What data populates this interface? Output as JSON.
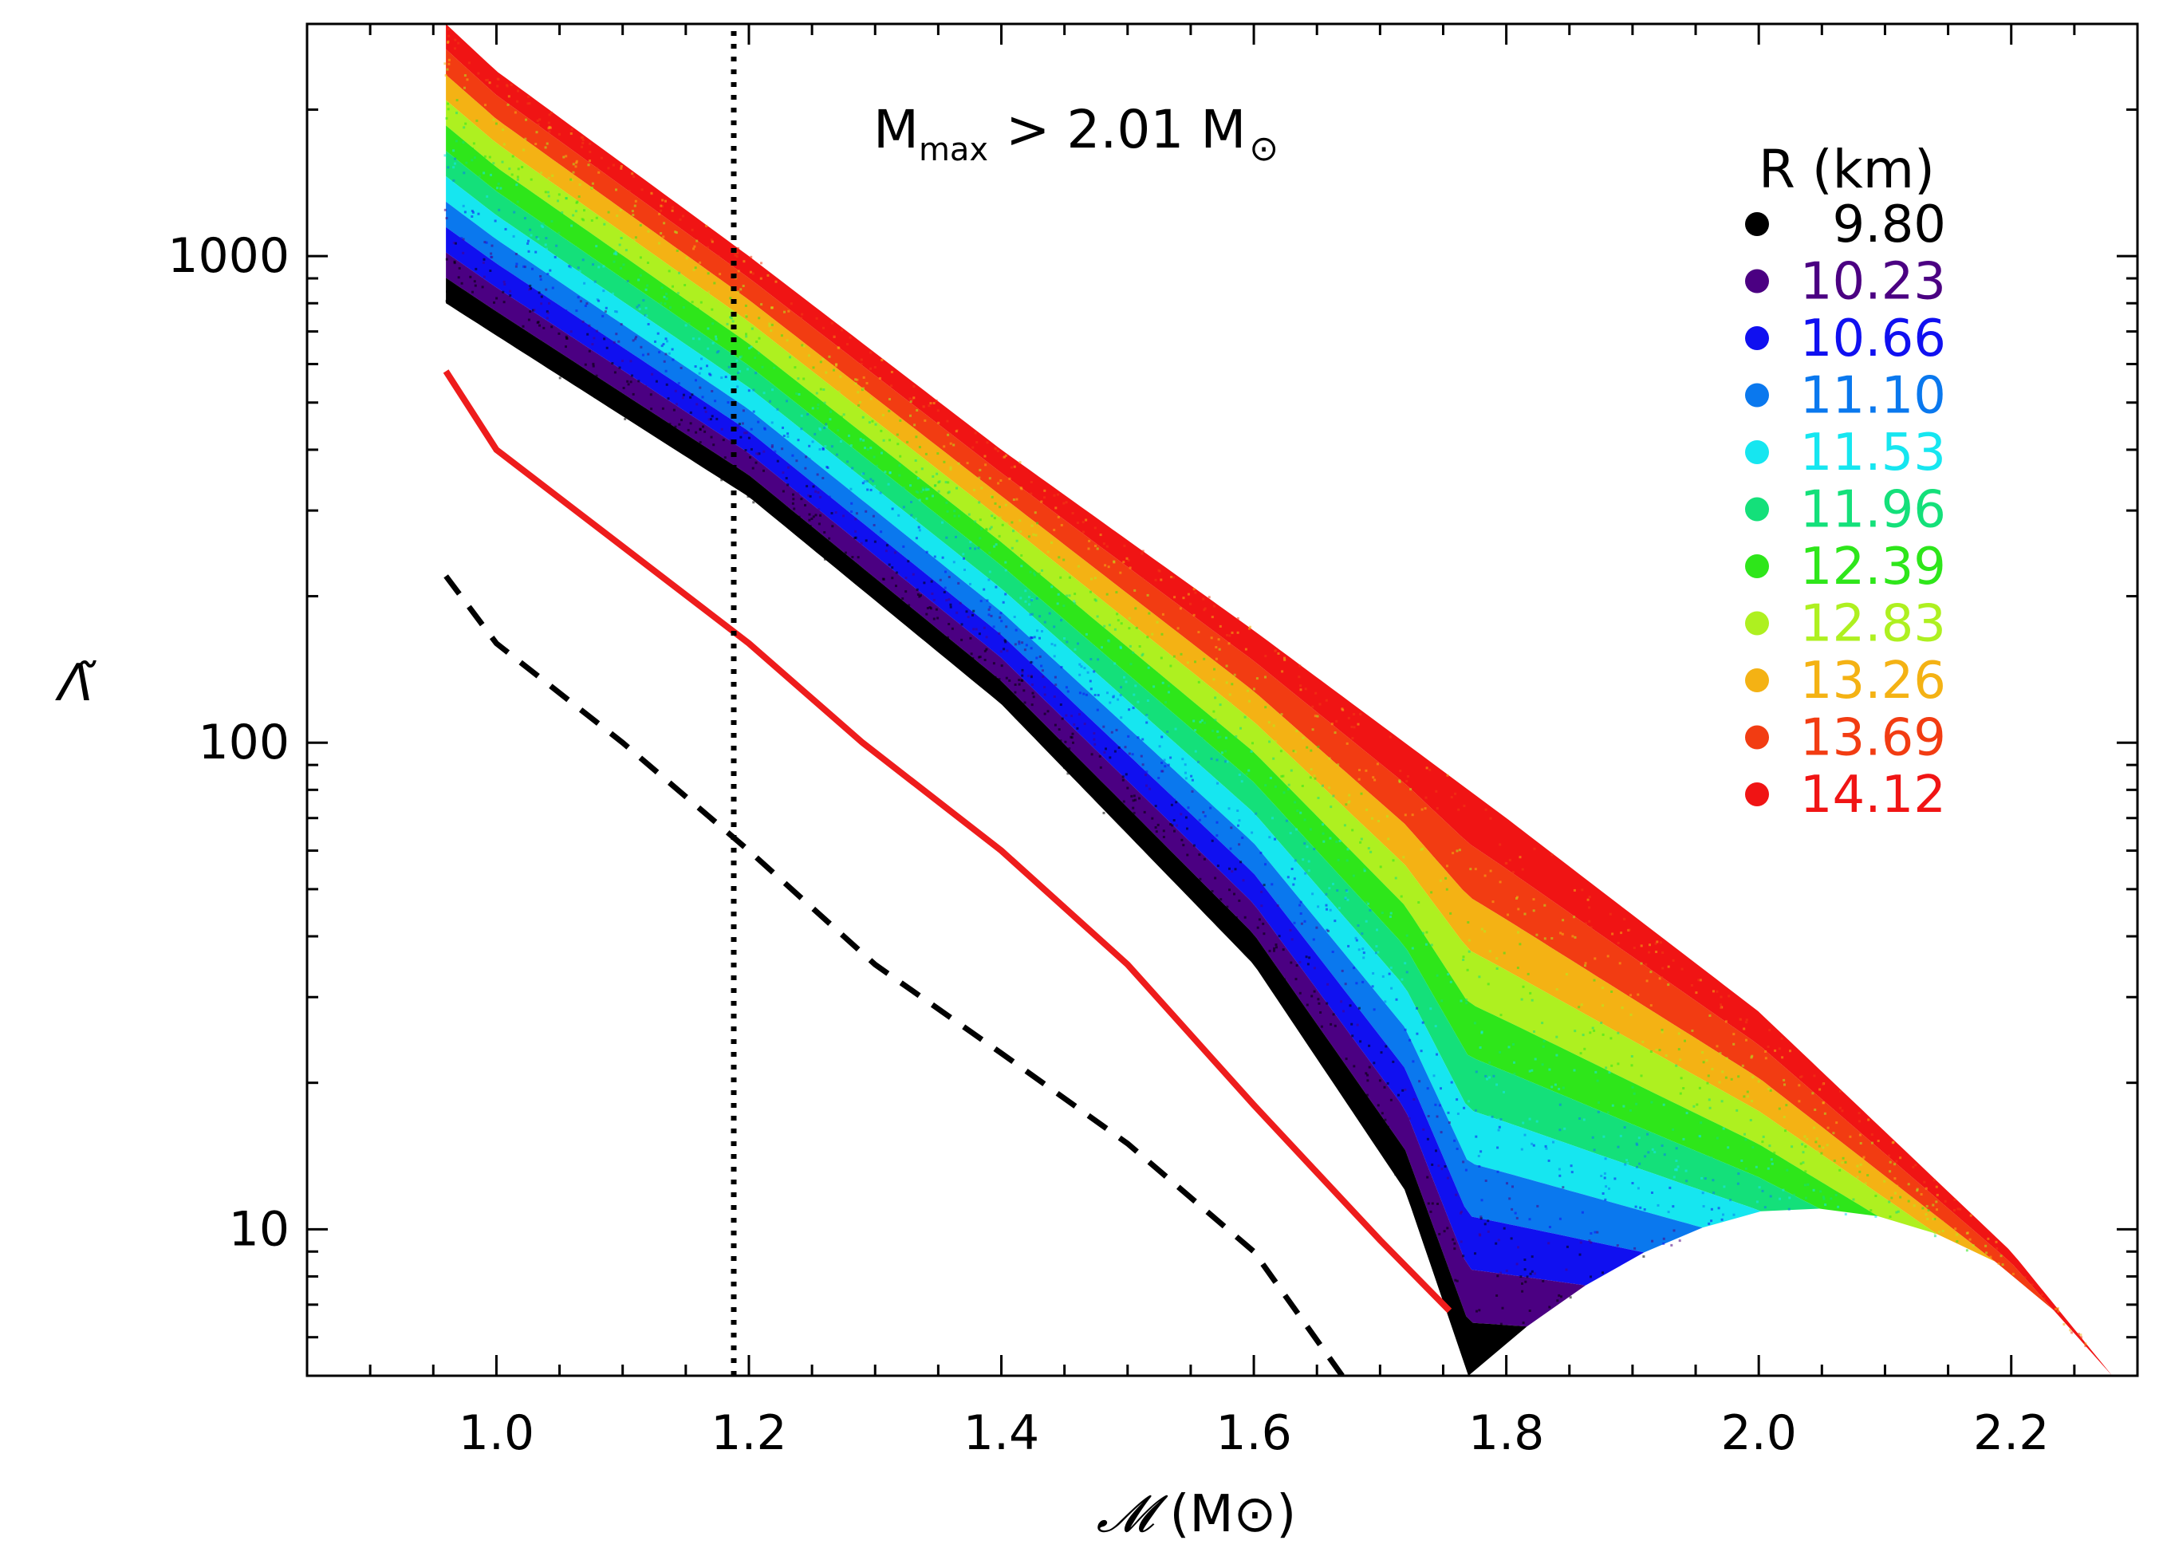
{
  "chart_data": {
    "type": "scatter",
    "title": "",
    "annotation": {
      "prefix": "M",
      "sub": "max",
      "relation": "> 2.01 M",
      "sun_symbol": "⊙"
    },
    "xlabel": {
      "symbol": "𝓜",
      "unit": "(M⊙)"
    },
    "ylabel": "Λ̃",
    "xlim": [
      0.85,
      2.3
    ],
    "ylim": [
      5,
      3000
    ],
    "yscale": "log",
    "x_ticks": [
      {
        "value": 1.0,
        "label": "1.0"
      },
      {
        "value": 1.2,
        "label": "1.2"
      },
      {
        "value": 1.4,
        "label": "1.4"
      },
      {
        "value": 1.6,
        "label": "1.6"
      },
      {
        "value": 1.8,
        "label": "1.8"
      },
      {
        "value": 2.0,
        "label": "2.0"
      },
      {
        "value": 2.2,
        "label": "2.2"
      }
    ],
    "y_ticks": [
      {
        "value": 10,
        "label": "10"
      },
      {
        "value": 100,
        "label": "100"
      },
      {
        "value": 1000,
        "label": "1000"
      }
    ],
    "legend": {
      "title": "R (km)",
      "placement": "top-right",
      "entries": [
        {
          "label": "9.80",
          "color": "#000000"
        },
        {
          "label": "10.23",
          "color": "#4b0082"
        },
        {
          "label": "10.66",
          "color": "#1010f0"
        },
        {
          "label": "11.10",
          "color": "#0a78ee"
        },
        {
          "label": "11.53",
          "color": "#16e6f0"
        },
        {
          "label": "11.96",
          "color": "#14e07a"
        },
        {
          "label": "12.39",
          "color": "#2ee61a"
        },
        {
          "label": "12.83",
          "color": "#aef020"
        },
        {
          "label": "13.26",
          "color": "#f4b214"
        },
        {
          "label": "13.69",
          "color": "#f23c12"
        },
        {
          "label": "14.12",
          "color": "#f01414"
        }
      ]
    },
    "series": [
      {
        "name": "red solid",
        "style": "solid",
        "color": "#ee1c1c",
        "x": [
          0.96,
          1.0,
          1.2,
          1.29,
          1.4,
          1.5,
          1.6,
          1.7,
          1.755
        ],
        "y": [
          580,
          400,
          160,
          100,
          60,
          35,
          18,
          9.5,
          6.8
        ]
      },
      {
        "name": "black dashed",
        "style": "dashed",
        "color": "#000000",
        "x": [
          0.96,
          1.0,
          1.1,
          1.2,
          1.3,
          1.4,
          1.5,
          1.6,
          1.67
        ],
        "y": [
          220,
          160,
          100,
          60,
          35,
          23,
          15,
          9,
          5
        ]
      },
      {
        "name": "vertical dotted",
        "style": "dotted",
        "color": "#000000",
        "x": [
          1.188,
          1.188
        ],
        "y": [
          5,
          3000
        ]
      }
    ],
    "scatter_band": {
      "description": "EOS scatter colored by radius",
      "x_start": 0.96,
      "lower_edge": {
        "x": [
          0.96,
          1.2,
          1.4,
          1.6,
          1.72,
          1.77
        ],
        "y": [
          800,
          320,
          120,
          35,
          12,
          5
        ]
      },
      "upper_edge": {
        "x": [
          0.96,
          1.0,
          1.2,
          1.4,
          1.6,
          1.8,
          2.0,
          2.2,
          2.28
        ],
        "y": [
          3000,
          2400,
          1000,
          400,
          170,
          70,
          28,
          9,
          5
        ]
      }
    }
  }
}
